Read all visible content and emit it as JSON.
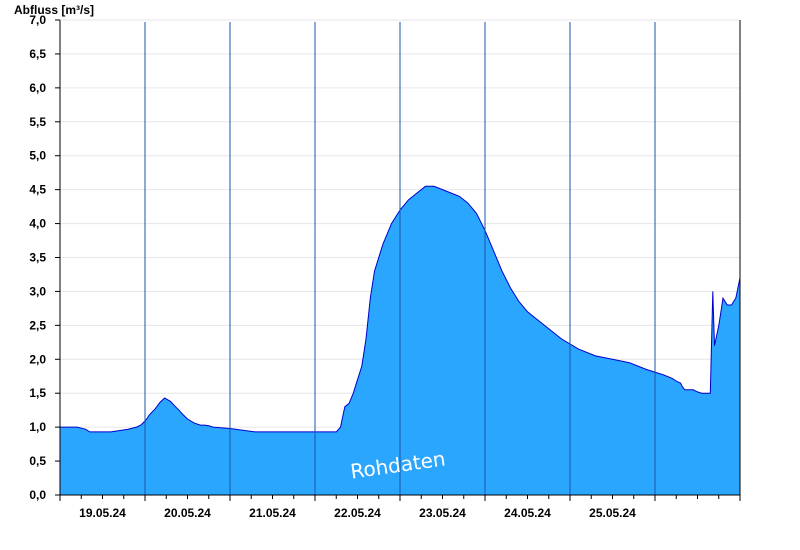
{
  "chart_data": {
    "type": "area",
    "title": "",
    "ylabel": "Abfluss [m³/s]",
    "xlabel": "",
    "watermark": "Rohdaten",
    "ylim": [
      0,
      7.0
    ],
    "yticks": [
      "0,0",
      "0,5",
      "1,0",
      "1,5",
      "2,0",
      "2,5",
      "3,0",
      "3,5",
      "4,0",
      "4,5",
      "5,0",
      "5,5",
      "6,0",
      "6,5",
      "7,0"
    ],
    "x_unit": "days since 19.05.24 00:00",
    "xlim": [
      -0.5,
      7.5
    ],
    "x_tick_labels": [
      "19.05.24",
      "20.05.24",
      "21.05.24",
      "22.05.24",
      "23.05.24",
      "24.05.24",
      "25.05.24"
    ],
    "grid": true,
    "colors": {
      "fill": "#2aa6ff",
      "line": "#0000cc",
      "grid": "#e6e6e6"
    },
    "series": [
      {
        "x": [
          -0.5,
          -0.3,
          -0.2,
          -0.15,
          0.0,
          0.05,
          0.1,
          0.3,
          0.4,
          0.45,
          0.5,
          0.52,
          0.55,
          0.62,
          0.68,
          0.73,
          0.8,
          0.86,
          0.9,
          0.95,
          1.0,
          1.08,
          1.15,
          1.2,
          1.25,
          1.3,
          1.5,
          1.8,
          2.0,
          2.1,
          2.3,
          2.5,
          2.7,
          2.75,
          2.8,
          2.85,
          2.9,
          2.95,
          3.0,
          3.05,
          3.1,
          3.15,
          3.2,
          3.3,
          3.4,
          3.5,
          3.6,
          3.7,
          3.8,
          3.9,
          4.0,
          4.1,
          4.2,
          4.3,
          4.4,
          4.5,
          4.6,
          4.7,
          4.8,
          4.9,
          5.0,
          5.2,
          5.4,
          5.6,
          5.8,
          6.0,
          6.2,
          6.4,
          6.6,
          6.7,
          6.75,
          6.78,
          6.8,
          6.82,
          6.85,
          6.9,
          6.95,
          7.0,
          7.05,
          7.1,
          7.15,
          7.18,
          7.2,
          7.25,
          7.3,
          7.35,
          7.4,
          7.45,
          7.5
        ],
        "values": [
          1.0,
          1.0,
          0.97,
          0.93,
          0.93,
          0.93,
          0.93,
          0.97,
          1.0,
          1.03,
          1.09,
          1.12,
          1.18,
          1.27,
          1.37,
          1.43,
          1.38,
          1.3,
          1.25,
          1.18,
          1.12,
          1.06,
          1.03,
          1.03,
          1.02,
          1.0,
          0.98,
          0.93,
          0.93,
          0.93,
          0.93,
          0.93,
          0.93,
          0.93,
          1.0,
          1.3,
          1.35,
          1.5,
          1.7,
          1.9,
          2.3,
          2.9,
          3.3,
          3.7,
          4.0,
          4.2,
          4.35,
          4.45,
          4.55,
          4.55,
          4.5,
          4.45,
          4.4,
          4.3,
          4.15,
          3.9,
          3.6,
          3.3,
          3.05,
          2.85,
          2.7,
          2.5,
          2.3,
          2.15,
          2.05,
          2.0,
          1.95,
          1.85,
          1.77,
          1.72,
          1.68,
          1.66,
          1.65,
          1.6,
          1.55,
          1.55,
          1.55,
          1.52,
          1.5,
          1.5,
          1.5,
          3.0,
          2.2,
          2.5,
          2.9,
          2.8,
          2.8,
          2.9,
          3.2
        ]
      }
    ]
  }
}
